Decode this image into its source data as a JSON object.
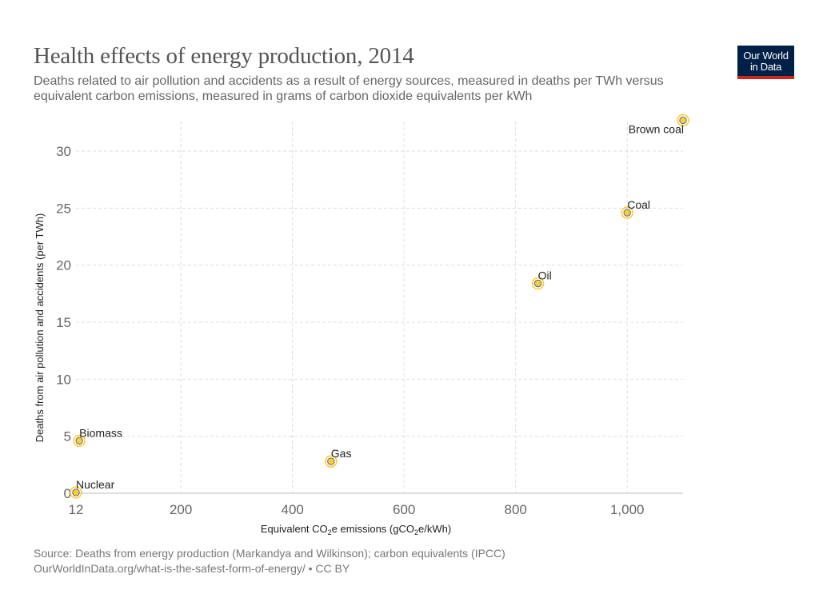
{
  "header": {
    "title": "Health effects of energy production, 2014",
    "subtitle": "Deaths related to air pollution and accidents as a result of energy sources, measured in deaths per TWh versus equivalent carbon emissions, measured in grams of carbon dioxide equivalents per kWh",
    "logo_line1": "Our World",
    "logo_line2": "in Data"
  },
  "footer": {
    "source": "Source: Deaths from energy production (Markandya and Wilkinson); carbon equivalents (IPCC)",
    "url_license": "OurWorldInData.org/what-is-the-safest-form-of-energy/ • CC BY"
  },
  "colors": {
    "point_fill": "#f7cd3e",
    "point_ring": "#f7cd3e",
    "point_stroke": "#666666",
    "grid": "#dddddd",
    "axis": "#dddddd",
    "logo_bg": "#002147",
    "logo_accent": "#ce261e"
  },
  "chart_data": {
    "type": "scatter",
    "title": "Health effects of energy production, 2014",
    "xlabel_parts": [
      "Equivalent CO",
      "2",
      "e emissions (gCO",
      "2",
      "e/kWh)"
    ],
    "xlabel": "Equivalent CO2e emissions (gCO2e/kWh)",
    "ylabel": "Deaths from air pollution and accidents (per TWh)",
    "xlim": [
      12,
      1100
    ],
    "ylim": [
      0,
      33
    ],
    "x_ticks": [
      {
        "value": 12,
        "label": "12"
      },
      {
        "value": 200,
        "label": "200"
      },
      {
        "value": 400,
        "label": "400"
      },
      {
        "value": 600,
        "label": "600"
      },
      {
        "value": 800,
        "label": "800"
      },
      {
        "value": 1000,
        "label": "1,000"
      }
    ],
    "y_ticks": [
      {
        "value": 0,
        "label": "0"
      },
      {
        "value": 5,
        "label": "5"
      },
      {
        "value": 10,
        "label": "10"
      },
      {
        "value": 15,
        "label": "15"
      },
      {
        "value": 20,
        "label": "20"
      },
      {
        "value": 25,
        "label": "25"
      },
      {
        "value": 30,
        "label": "30"
      }
    ],
    "grid": true,
    "points": [
      {
        "name": "Brown coal",
        "x": 1100,
        "y": 32.7,
        "label_side": "below-left"
      },
      {
        "name": "Coal",
        "x": 1000,
        "y": 24.6,
        "label_side": "above-right"
      },
      {
        "name": "Oil",
        "x": 840,
        "y": 18.4,
        "label_side": "above-right"
      },
      {
        "name": "Gas",
        "x": 469,
        "y": 2.8,
        "label_side": "above-right"
      },
      {
        "name": "Biomass",
        "x": 18,
        "y": 4.6,
        "label_side": "above-right"
      },
      {
        "name": "Nuclear",
        "x": 12,
        "y": 0.07,
        "label_side": "above-right"
      }
    ]
  }
}
